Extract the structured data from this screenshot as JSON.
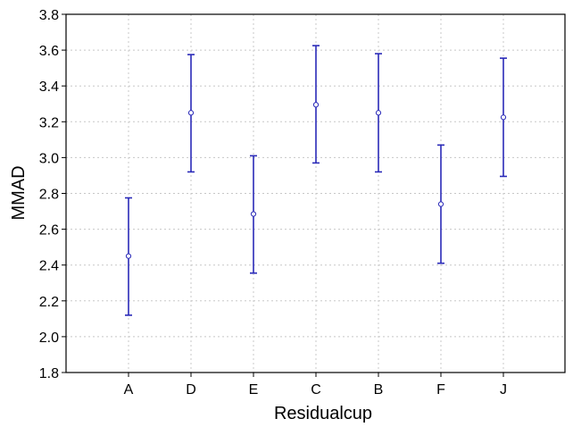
{
  "chart_data": {
    "type": "scatter",
    "xlabel": "Residualcup",
    "ylabel": "MMAD",
    "ylim": [
      1.8,
      3.8
    ],
    "yticks": [
      "1.8",
      "2.0",
      "2.2",
      "2.4",
      "2.6",
      "2.8",
      "3.0",
      "3.2",
      "3.4",
      "3.6",
      "3.8"
    ],
    "grid": true,
    "categories": [
      "A",
      "D",
      "E",
      "C",
      "B",
      "F",
      "J"
    ],
    "mean": [
      2.45,
      3.25,
      2.685,
      3.295,
      3.25,
      2.74,
      3.225
    ],
    "lower": [
      2.12,
      2.92,
      2.355,
      2.97,
      2.92,
      2.41,
      2.895
    ],
    "upper": [
      2.775,
      3.575,
      3.01,
      3.625,
      3.58,
      3.07,
      3.555
    ],
    "point_color": "#ffffff",
    "error_color": "#2a2ab8"
  }
}
